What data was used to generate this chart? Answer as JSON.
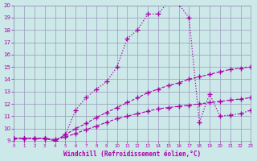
{
  "xlabel": "Windchill (Refroidissement éolien,°C)",
  "xlim": [
    0,
    23
  ],
  "ylim": [
    9,
    20
  ],
  "xticks": [
    0,
    1,
    2,
    3,
    4,
    5,
    6,
    7,
    8,
    9,
    10,
    11,
    12,
    13,
    14,
    15,
    16,
    17,
    18,
    19,
    20,
    21,
    22,
    23
  ],
  "yticks": [
    9,
    10,
    11,
    12,
    13,
    14,
    15,
    16,
    17,
    18,
    19,
    20
  ],
  "bg_color": "#cce8e8",
  "grid_color": "#9999bb",
  "line_color": "#aa00aa",
  "line1_x": [
    0,
    1,
    2,
    3,
    4,
    5,
    6,
    7,
    8,
    9,
    10,
    11,
    12,
    13,
    14,
    15,
    16,
    17,
    18,
    19,
    20,
    21,
    22,
    23
  ],
  "line1_y": [
    9.2,
    9.2,
    9.2,
    9.2,
    9.1,
    9.3,
    9.6,
    9.9,
    10.2,
    10.5,
    10.8,
    11.0,
    11.2,
    11.4,
    11.6,
    11.7,
    11.8,
    11.9,
    12.0,
    12.1,
    12.2,
    12.3,
    12.4,
    12.5
  ],
  "line2_x": [
    0,
    1,
    2,
    3,
    4,
    5,
    6,
    7,
    8,
    9,
    10,
    11,
    12,
    13,
    14,
    15,
    16,
    17,
    18,
    19,
    20,
    21,
    22,
    23
  ],
  "line2_y": [
    9.2,
    9.2,
    9.2,
    9.2,
    9.0,
    9.5,
    10.0,
    10.4,
    10.9,
    11.3,
    11.7,
    12.1,
    12.5,
    12.9,
    13.2,
    13.5,
    13.7,
    14.0,
    14.2,
    14.4,
    14.6,
    14.8,
    14.9,
    15.0
  ],
  "line3_x": [
    0,
    1,
    2,
    3,
    4,
    5,
    6,
    7,
    8,
    9,
    10,
    11,
    12,
    13,
    14,
    15,
    16,
    17,
    18,
    19,
    20,
    21,
    22,
    23
  ],
  "line3_y": [
    9.2,
    9.2,
    9.2,
    9.2,
    9.0,
    9.5,
    11.5,
    12.5,
    13.2,
    13.8,
    15.0,
    17.3,
    18.0,
    19.3,
    19.3,
    20.3,
    20.1,
    19.0,
    10.5,
    12.8,
    11.0,
    11.1,
    11.2,
    11.5
  ]
}
